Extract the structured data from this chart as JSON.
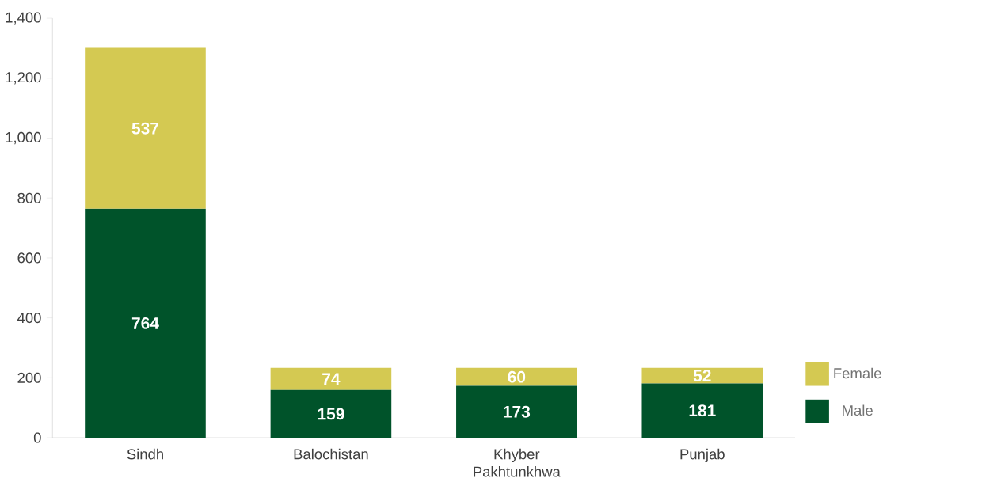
{
  "chart_data": {
    "type": "bar",
    "stacked": true,
    "categories": [
      "Sindh",
      "Balochistan",
      "Khyber Pakhtunkhwa",
      "Punjab"
    ],
    "series": [
      {
        "name": "Male",
        "color": "#00532a",
        "values": [
          764,
          159,
          173,
          181
        ]
      },
      {
        "name": "Female",
        "color": "#d4c952",
        "values": [
          537,
          74,
          60,
          52
        ]
      }
    ],
    "ylim": [
      0,
      1400
    ],
    "yticks": [
      0,
      200,
      400,
      600,
      800,
      {
        "value": 1000,
        "label": "1,000"
      },
      {
        "value": 1200,
        "label": "1,200"
      },
      {
        "value": 1400,
        "label": "1,400"
      }
    ],
    "data_labels": true,
    "legend": "right",
    "grid": false
  }
}
